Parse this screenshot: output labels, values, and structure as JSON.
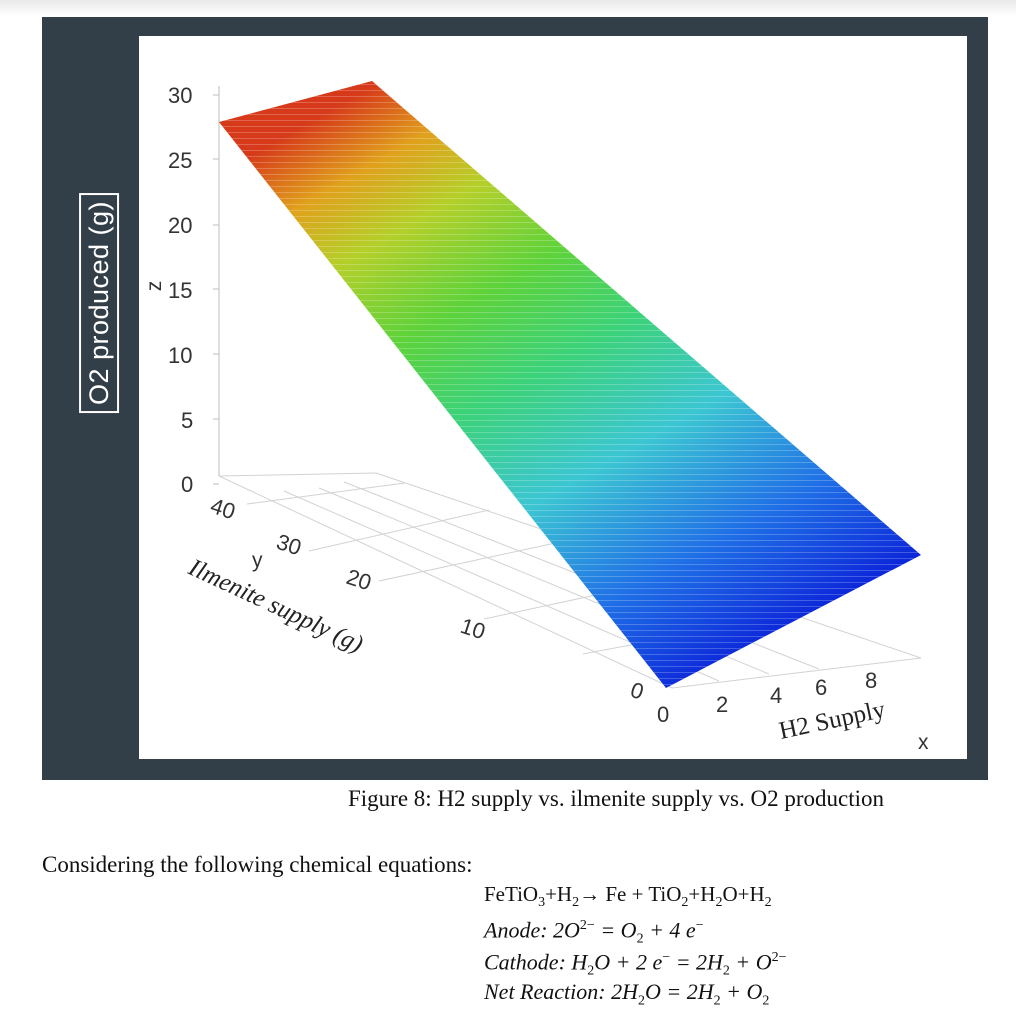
{
  "figure": {
    "caption": "Figure 8: H2 supply vs. ilmenite supply vs. O2 production",
    "outer_zlabel": "O2 produced (g)",
    "colors": {
      "frame": "#323e48",
      "panel": "#ffffff",
      "grid": "#d2d2d2"
    },
    "chart_data": {
      "type": "surface3d",
      "x_axis": {
        "name": "x",
        "label": "H2 Supply",
        "ticks": [
          "0",
          "2",
          "4",
          "6",
          "8"
        ]
      },
      "y_axis": {
        "name": "y",
        "label": "Ilmenite supply (g)",
        "ticks": [
          "0",
          "10",
          "20",
          "30",
          "40"
        ]
      },
      "z_axis": {
        "name": "z",
        "ticks": [
          "0",
          "5",
          "10",
          "15",
          "20",
          "25",
          "30"
        ]
      },
      "zlim": [
        0,
        30
      ],
      "surface": {
        "description_points": [
          {
            "x": 0,
            "y": 0,
            "z": 0
          },
          {
            "x": 0,
            "y": 40,
            "z": 27.5
          },
          {
            "x": 10,
            "y": 40,
            "z": 30.5
          },
          {
            "x": 10,
            "y": 0,
            "z": 3
          }
        ],
        "colormap": "jet"
      }
    }
  },
  "text": {
    "intro": "Considering the following chemical equations:",
    "equations": [
      {
        "parts": [
          "FeTiO",
          "3",
          "+H",
          "2",
          "→ Fe + TiO",
          "2",
          "+H",
          "2",
          "O+H",
          "2"
        ]
      },
      {
        "label": "Anode",
        "body": "2O",
        "sup": "2−",
        "rest": " = O",
        "sub": "2",
        "tail": " + 4 e",
        "sup2": "−"
      },
      {
        "label": "Cathode",
        "body": "H",
        "sub1": "2",
        "mid": "O + 2 e",
        "sup1": "−",
        "mid2": " = 2H",
        "sub2": "2",
        "mid3": " + O",
        "sup2": "2−"
      },
      {
        "label": "Net Reaction",
        "body": "2H",
        "sub1": "2",
        "mid": "O = 2H",
        "sub2": "2",
        "mid2": " + O",
        "sub3": "2"
      }
    ]
  }
}
